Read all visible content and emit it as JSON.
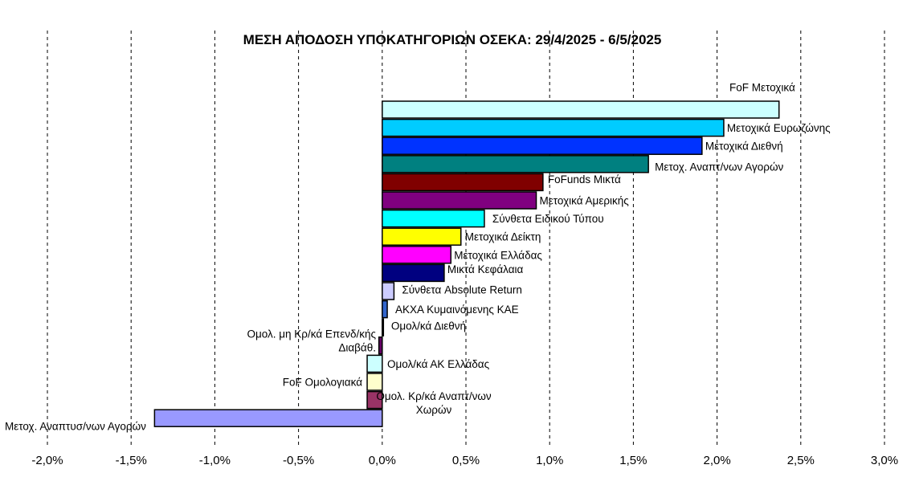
{
  "chart_data": {
    "type": "bar",
    "orientation": "horizontal",
    "title": "ΜΕΣΗ ΑΠΟΔΟΣΗ ΥΠΟΚΑΤΗΓΟΡΙΩΝ ΟΣΕΚΑ: 29/4/2025 - 6/5/2025",
    "xlabel": "",
    "ylabel": "",
    "xlim": [
      -2.0,
      3.0
    ],
    "x_ticks": [
      -2.0,
      -1.5,
      -1.0,
      -0.5,
      0.0,
      0.5,
      1.0,
      1.5,
      2.0,
      2.5,
      3.0
    ],
    "x_tick_labels": [
      "-2,0%",
      "-1,5%",
      "-1,0%",
      "-0,5%",
      "0,0%",
      "0,5%",
      "1,0%",
      "1,5%",
      "2,0%",
      "2,5%",
      "3,0%"
    ],
    "grid": "vertical-dashed",
    "legend": "none",
    "bars": [
      {
        "category": "FoF Μετοχικά",
        "value": 2.37,
        "color": "#ccffff"
      },
      {
        "category": "Μετοχικά Ευρωζώνης",
        "value": 2.04,
        "color": "#00ccff"
      },
      {
        "category": "Μετοχικά Διεθνή",
        "value": 1.91,
        "color": "#0033ff"
      },
      {
        "category": "Μετοχ. Αναπτ/νων Αγορών",
        "value": 1.59,
        "color": "#008080"
      },
      {
        "category": "FoFunds Μικτά",
        "value": 0.96,
        "color": "#800000"
      },
      {
        "category": "Μετοχικά Αμερικής",
        "value": 0.92,
        "color": "#800080"
      },
      {
        "category": "Σύνθετα Ειδικού Τύπου",
        "value": 0.61,
        "color": "#00ffff"
      },
      {
        "category": "Μετοχικά Δείκτη",
        "value": 0.47,
        "color": "#ffff00"
      },
      {
        "category": "Μετοχικά Ελλάδας",
        "value": 0.41,
        "color": "#ff00ff"
      },
      {
        "category": "Μικτά Κεφάλαια",
        "value": 0.37,
        "color": "#000080"
      },
      {
        "category": "Σύνθετα Absolute Return",
        "value": 0.07,
        "color": "#ccccff"
      },
      {
        "category": "ΑΚΧΑ Κυμαινόμενης ΚΑΕ",
        "value": 0.03,
        "color": "#3366cc"
      },
      {
        "category": "Ομολ/κά Διεθνή",
        "value": 0.005,
        "color": "#c0c0c0"
      },
      {
        "category": "Ομολ. μη Κρ/κά Επενδ/κής Διαβάθ.",
        "value": -0.02,
        "color": "#660066"
      },
      {
        "category": "Ομολ/κά ΑΚ Ελλάδας",
        "value": -0.09,
        "color": "#ccffff"
      },
      {
        "category": "FoF Ομολογιακά",
        "value": -0.09,
        "color": "#ffffcc"
      },
      {
        "category": "Ομολ. Κρ/κά Αναπτ/νων Χωρών",
        "value": -0.09,
        "color": "#993366"
      },
      {
        "category": "Μετοχ. Αναπτυσ/νων Αγορών",
        "value": -1.36,
        "color": "#9999ff"
      }
    ]
  }
}
